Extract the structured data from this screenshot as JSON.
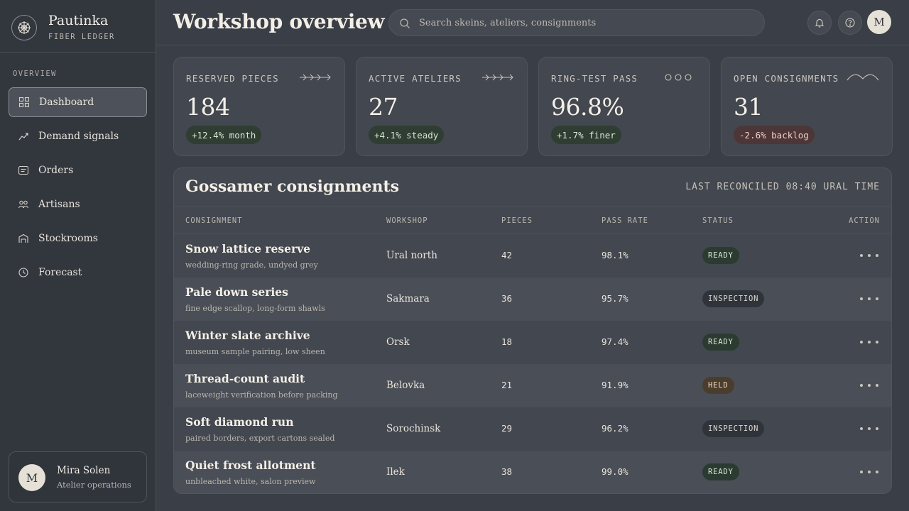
{
  "brand": {
    "name": "Pautinka",
    "subtitle": "FIBER LEDGER"
  },
  "nav": {
    "section_label": "OVERVIEW",
    "items": [
      {
        "label": "Dashboard",
        "icon": "grid-icon",
        "active": true
      },
      {
        "label": "Demand signals",
        "icon": "trend-line-icon"
      },
      {
        "label": "Orders",
        "icon": "receipt-icon"
      },
      {
        "label": "Artisans",
        "icon": "people-icon"
      },
      {
        "label": "Stockrooms",
        "icon": "warehouse-icon"
      },
      {
        "label": "Forecast",
        "icon": "clock-icon"
      }
    ]
  },
  "user": {
    "initial": "M",
    "name": "Mira Solen",
    "role": "Atelier operations"
  },
  "header": {
    "title": "Workshop overview",
    "search_placeholder": "Search skeins, ateliers, consignments",
    "avatar_initial": "M"
  },
  "kpis": [
    {
      "label": "RESERVED PIECES",
      "value": "184",
      "delta": "+12.4% month",
      "trend": "up",
      "icon": "arrows-deco-icon"
    },
    {
      "label": "ACTIVE ATELIERS",
      "value": "27",
      "delta": "+4.1% steady",
      "trend": "up",
      "icon": "arrows-deco-icon"
    },
    {
      "label": "RING-TEST PASS",
      "value": "96.8%",
      "delta": "+1.7% finer",
      "trend": "up",
      "icon": "rings-deco-icon"
    },
    {
      "label": "OPEN CONSIGNMENTS",
      "value": "31",
      "delta": "-2.6% backlog",
      "trend": "down",
      "icon": "wave-deco-icon"
    }
  ],
  "table": {
    "title": "Gossamer consignments",
    "meta": "LAST RECONCILED 08:40 URAL TIME",
    "columns": [
      "CONSIGNMENT",
      "WORKSHOP",
      "PIECES",
      "PASS RATE",
      "STATUS",
      "ACTION"
    ],
    "rows": [
      {
        "name": "Snow lattice reserve",
        "note": "wedding-ring grade, undyed grey",
        "workshop": "Ural north",
        "pieces": "42",
        "pass_rate": "98.1%",
        "status": "READY"
      },
      {
        "name": "Pale down series",
        "note": "fine edge scallop, long-form shawls",
        "workshop": "Sakmara",
        "pieces": "36",
        "pass_rate": "95.7%",
        "status": "INSPECTION"
      },
      {
        "name": "Winter slate archive",
        "note": "museum sample pairing, low sheen",
        "workshop": "Orsk",
        "pieces": "18",
        "pass_rate": "97.4%",
        "status": "READY"
      },
      {
        "name": "Thread-count audit",
        "note": "laceweight verification before packing",
        "workshop": "Belovka",
        "pieces": "21",
        "pass_rate": "91.9%",
        "status": "HELD"
      },
      {
        "name": "Soft diamond run",
        "note": "paired borders, export cartons sealed",
        "workshop": "Sorochinsk",
        "pieces": "29",
        "pass_rate": "96.2%",
        "status": "INSPECTION"
      },
      {
        "name": "Quiet frost allotment",
        "note": "unbleached white, salon preview",
        "workshop": "Ilek",
        "pieces": "38",
        "pass_rate": "99.0%",
        "status": "READY"
      }
    ]
  }
}
